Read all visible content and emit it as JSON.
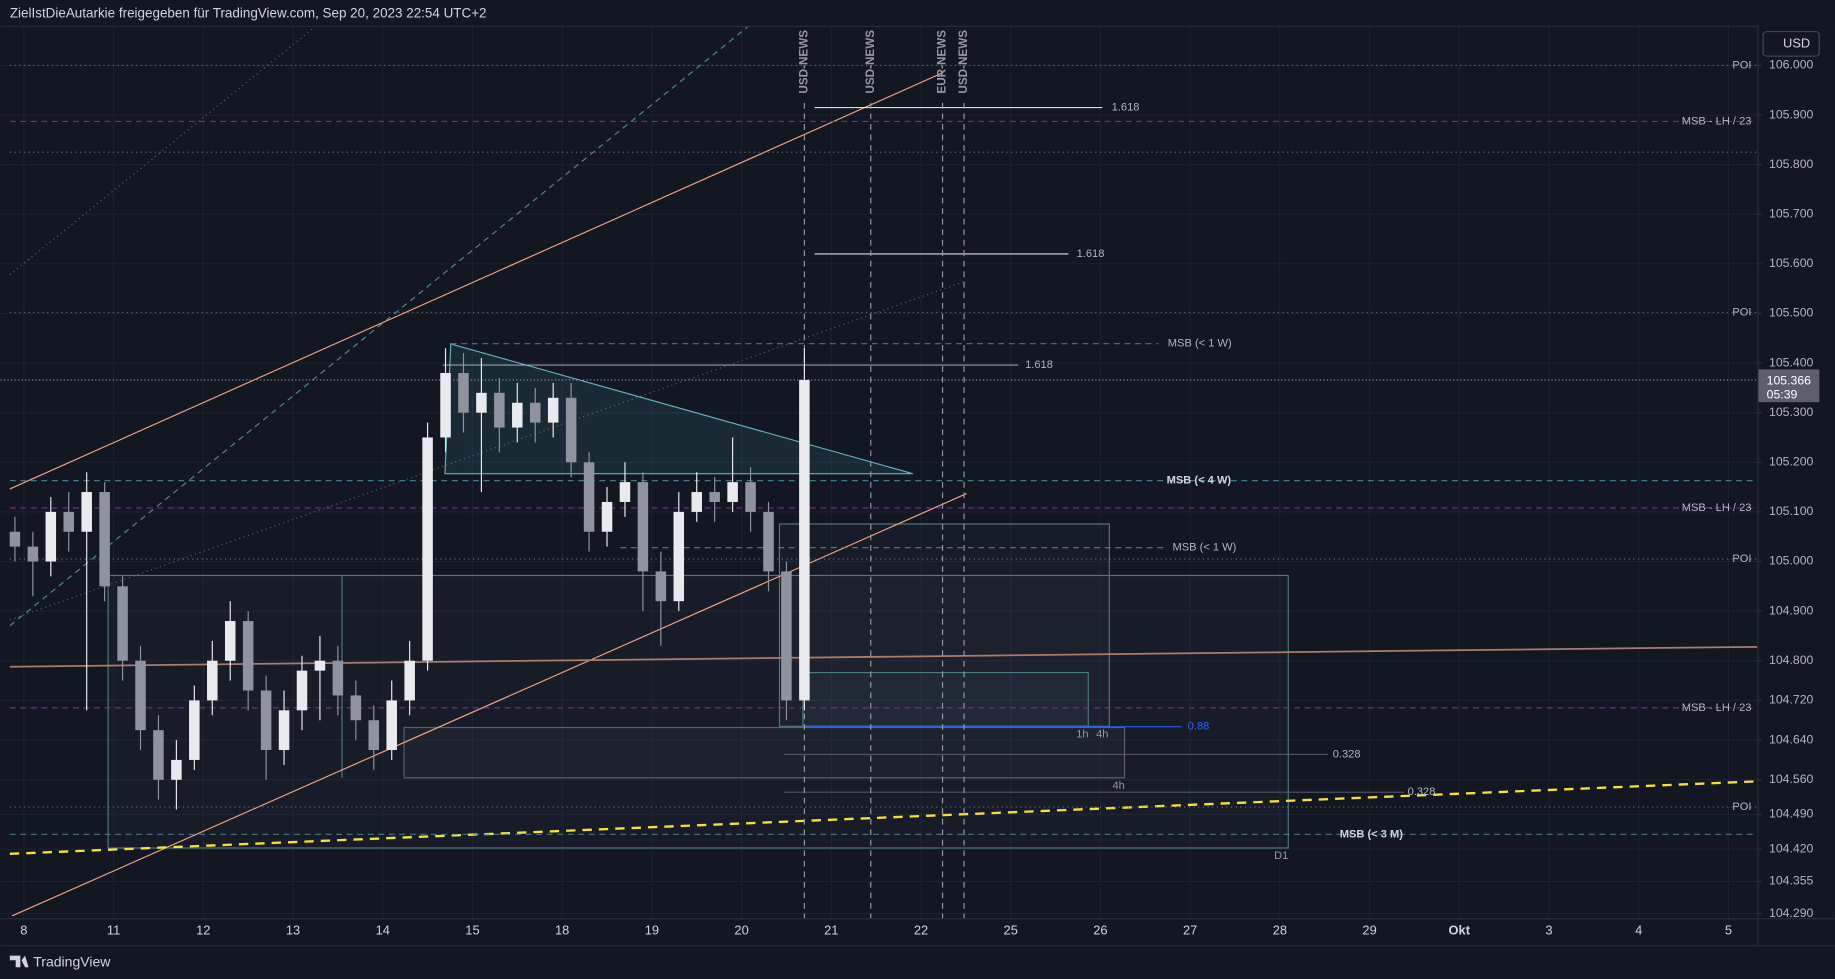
{
  "header": {
    "title": "ZielIstDieAutarkie freigegeben für TradingView.com, Sep 20, 2023 22:54 UTC+2"
  },
  "currency_button": "USD",
  "footer": {
    "brand": "TradingView"
  },
  "chart_data": {
    "type": "candlestick",
    "categories": [
      "8",
      "11",
      "12",
      "13",
      "14",
      "15",
      "18",
      "19",
      "20",
      "21",
      "22",
      "25",
      "26",
      "27",
      "28",
      "29",
      "Okt",
      "3",
      "4",
      "5"
    ],
    "x": [
      -0.1,
      0.1,
      0.3,
      0.5,
      0.7,
      0.9,
      1.1,
      1.3,
      1.5,
      1.7,
      1.9,
      2.1,
      2.3,
      2.5,
      2.7,
      2.9,
      3.1,
      3.3,
      3.5,
      3.7,
      3.9,
      4.1,
      4.3,
      4.5,
      4.7,
      4.9,
      5.1,
      5.3,
      5.5,
      5.7,
      5.9,
      6.1,
      6.3,
      6.5,
      6.7,
      6.9,
      7.1,
      7.3,
      7.5,
      7.7,
      7.9,
      8.1,
      8.3,
      8.5,
      8.7
    ],
    "open": [
      105.06,
      105.03,
      105.0,
      105.1,
      105.06,
      105.14,
      104.95,
      104.8,
      104.66,
      104.56,
      104.6,
      104.72,
      104.8,
      104.88,
      104.74,
      104.62,
      104.7,
      104.78,
      104.8,
      104.73,
      104.68,
      104.62,
      104.72,
      104.8,
      105.25,
      105.38,
      105.3,
      105.34,
      105.27,
      105.32,
      105.28,
      105.33,
      105.2,
      105.06,
      105.12,
      105.16,
      104.98,
      104.92,
      105.1,
      105.14,
      105.12,
      105.16,
      105.1,
      104.98,
      104.72
    ],
    "high": [
      105.09,
      105.06,
      105.13,
      105.14,
      105.18,
      105.16,
      104.97,
      104.83,
      104.69,
      104.64,
      104.75,
      104.84,
      104.92,
      104.9,
      104.77,
      104.74,
      104.81,
      104.85,
      104.83,
      104.76,
      104.71,
      104.76,
      104.84,
      105.28,
      105.43,
      105.42,
      105.41,
      105.37,
      105.36,
      105.35,
      105.36,
      105.36,
      105.22,
      105.15,
      105.2,
      105.18,
      105.02,
      105.14,
      105.18,
      105.17,
      105.25,
      105.19,
      105.12,
      105.0,
      105.43
    ],
    "low": [
      105.0,
      104.93,
      104.97,
      105.02,
      104.7,
      104.92,
      104.76,
      104.62,
      104.52,
      104.5,
      104.58,
      104.69,
      104.76,
      104.7,
      104.56,
      104.59,
      104.66,
      104.68,
      104.69,
      104.64,
      104.58,
      104.6,
      104.69,
      104.78,
      105.22,
      105.26,
      105.14,
      105.22,
      105.24,
      105.24,
      105.25,
      105.17,
      105.02,
      105.03,
      105.09,
      104.9,
      104.83,
      104.9,
      105.08,
      105.08,
      105.1,
      105.06,
      104.94,
      104.68,
      104.7
    ],
    "close": [
      105.03,
      105.0,
      105.1,
      105.06,
      105.14,
      104.95,
      104.8,
      104.66,
      104.56,
      104.6,
      104.72,
      104.8,
      104.88,
      104.74,
      104.62,
      104.7,
      104.78,
      104.8,
      104.73,
      104.68,
      104.62,
      104.72,
      104.8,
      105.25,
      105.38,
      105.3,
      105.34,
      105.27,
      105.32,
      105.28,
      105.33,
      105.2,
      105.06,
      105.12,
      105.16,
      104.98,
      104.92,
      105.1,
      105.14,
      105.12,
      105.16,
      105.1,
      104.98,
      104.72,
      105.366
    ],
    "up_color": "#e8eaf0",
    "down_color": "#8f939e",
    "ylim": [
      104.281,
      106.08
    ],
    "yticks": [
      {
        "value": 106.0,
        "label": "106.000"
      },
      {
        "value": 105.9,
        "label": "105.900"
      },
      {
        "value": 105.8,
        "label": "105.800"
      },
      {
        "value": 105.7,
        "label": "105.700"
      },
      {
        "value": 105.6,
        "label": "105.600"
      },
      {
        "value": 105.5,
        "label": "105.500"
      },
      {
        "value": 105.4,
        "label": "105.400"
      },
      {
        "value": 105.3,
        "label": "105.300"
      },
      {
        "value": 105.2,
        "label": "105.200"
      },
      {
        "value": 105.1,
        "label": "105.100"
      },
      {
        "value": 105.0,
        "label": "105.000"
      },
      {
        "value": 104.9,
        "label": "104.900"
      },
      {
        "value": 104.8,
        "label": "104.800"
      },
      {
        "value": 104.72,
        "label": "104.720"
      },
      {
        "value": 104.64,
        "label": "104.640"
      },
      {
        "value": 104.56,
        "label": "104.560"
      },
      {
        "value": 104.49,
        "label": "104.490"
      },
      {
        "value": 104.42,
        "label": "104.420"
      },
      {
        "value": 104.355,
        "label": "104.355"
      },
      {
        "value": 104.29,
        "label": "104.290"
      }
    ],
    "grid": true,
    "last_price_countdown": "05:39",
    "levels": [
      {
        "value": 106.0,
        "label": "POI",
        "color": "#787b86",
        "style": "dotted"
      },
      {
        "value": 105.887,
        "label": "MSB - LH / 23",
        "color": "#9c27b0",
        "style": "dashed"
      },
      {
        "value": 105.825,
        "color": "#787b86",
        "style": "dotted"
      },
      {
        "value": 105.915,
        "label": "1.618",
        "color": "#ffffff",
        "style": "solid"
      },
      {
        "value": 105.62,
        "label": "1.618",
        "color": "#ffffff",
        "style": "solid"
      },
      {
        "value": 105.502,
        "label": "POI",
        "color": "#787b86",
        "style": "dotted"
      },
      {
        "value": 105.439,
        "label": "MSB (< 1 W)",
        "color": "#4a8a96",
        "style": "dashed"
      },
      {
        "value": 105.396,
        "label": "1.618",
        "color": "#b2b5be",
        "style": "solid"
      },
      {
        "value": 105.163,
        "label": "MSB (< 4 W)",
        "color": "#4a8a96",
        "style": "dashed",
        "bold": true
      },
      {
        "value": 105.108,
        "label": "MSB - LH / 23",
        "color": "#9c27b0",
        "style": "dashed"
      },
      {
        "value": 105.028,
        "label": "MSB (< 1 W)",
        "color": "#4a8a96",
        "style": "dashed"
      },
      {
        "value": 105.005,
        "label": "POI",
        "color": "#787b86",
        "style": "dotted"
      },
      {
        "value": 104.705,
        "label": "MSB - LH / 23",
        "color": "#9c27b0",
        "style": "dashed"
      },
      {
        "value": 104.667,
        "label": "0.88",
        "color": "#2962ff",
        "style": "solid"
      },
      {
        "value": 104.611,
        "label": "0.328",
        "color": "#5d606b",
        "style": "solid"
      },
      {
        "value": 104.535,
        "label": "0.328",
        "color": "#5d606b",
        "style": "solid"
      },
      {
        "value": 104.505,
        "label": "POI",
        "color": "#787b86",
        "style": "dotted"
      },
      {
        "value": 104.45,
        "label": "MSB (< 3 M)",
        "color": "#4a8a96",
        "style": "dashed",
        "bold": true
      }
    ],
    "events": [
      {
        "x": 8.7,
        "label": "USD-NEWS"
      },
      {
        "x": 9.44,
        "label": "USD-NEWS"
      },
      {
        "x": 10.24,
        "label": "EUR-NEWS"
      },
      {
        "x": 10.48,
        "label": "USD-NEWS"
      }
    ],
    "box_labels": [
      "1h",
      "4h",
      "4h",
      "D1"
    ]
  }
}
